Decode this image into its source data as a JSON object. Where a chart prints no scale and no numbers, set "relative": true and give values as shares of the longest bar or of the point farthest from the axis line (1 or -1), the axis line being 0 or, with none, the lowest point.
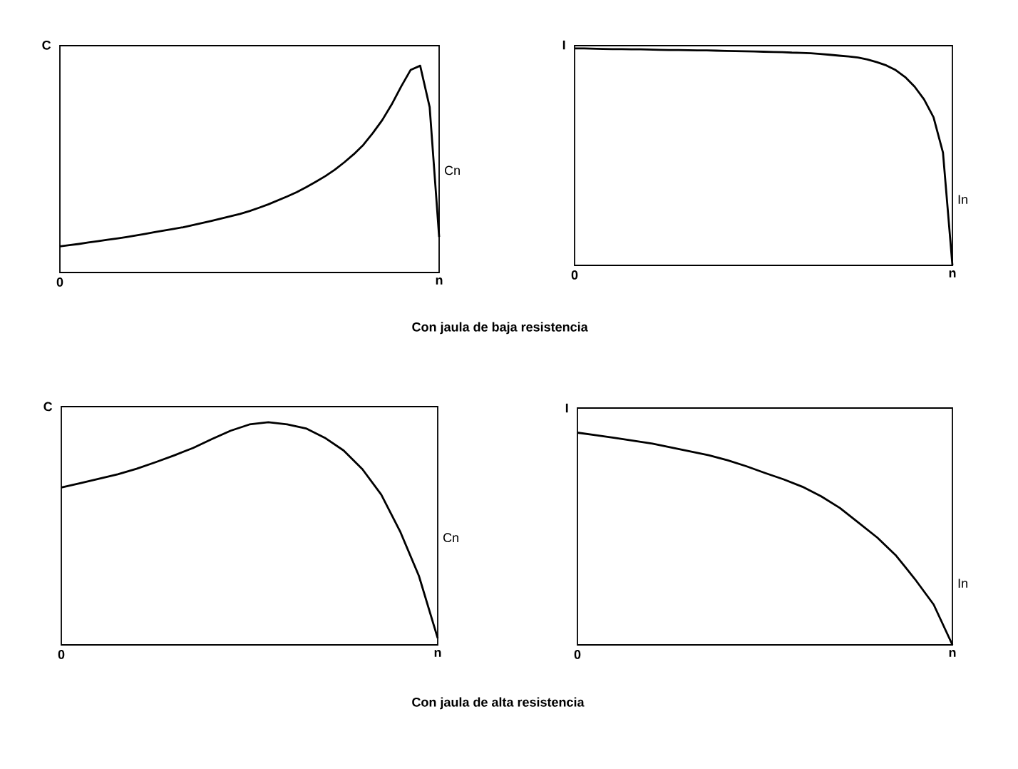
{
  "chart_data": [
    {
      "type": "line",
      "relative": true,
      "color": "#000000",
      "ylabel": "C",
      "annotations": [
        "Cn",
        "Con jaula de baja resistencia"
      ],
      "categories": [
        "0",
        null,
        null,
        null,
        null,
        null,
        null,
        null,
        null,
        null,
        null,
        null,
        null,
        null,
        null,
        null,
        null,
        null,
        null,
        null,
        null,
        null,
        null,
        null,
        null,
        null,
        null,
        null,
        null,
        null,
        null,
        null,
        null,
        null,
        null,
        null,
        null,
        null,
        null,
        null,
        "n"
      ],
      "values": [
        0.126,
        0.132,
        0.138,
        0.145,
        0.151,
        0.158,
        0.164,
        0.171,
        0.179,
        0.187,
        0.195,
        0.203,
        0.211,
        0.219,
        0.229,
        0.239,
        0.25,
        0.261,
        0.272,
        0.283,
        0.297,
        0.313,
        0.33,
        0.349,
        0.368,
        0.389,
        0.413,
        0.439,
        0.466,
        0.497,
        0.533,
        0.572,
        0.617,
        0.674,
        0.737,
        0.813,
        0.9,
        0.98,
        1.0,
        0.8,
        0.172
      ]
    },
    {
      "type": "line",
      "relative": true,
      "color": "#000000",
      "ylabel": "I",
      "annotations": [
        "In"
      ],
      "categories": [
        "0",
        null,
        null,
        null,
        null,
        null,
        null,
        null,
        null,
        null,
        null,
        null,
        null,
        null,
        null,
        null,
        null,
        null,
        null,
        null,
        null,
        null,
        null,
        null,
        null,
        null,
        null,
        null,
        null,
        null,
        null,
        null,
        null,
        null,
        null,
        null,
        null,
        null,
        null,
        null,
        "n"
      ],
      "values": [
        1.0,
        1.0,
        0.999,
        0.998,
        0.997,
        0.997,
        0.996,
        0.996,
        0.995,
        0.994,
        0.993,
        0.993,
        0.992,
        0.991,
        0.991,
        0.99,
        0.989,
        0.988,
        0.987,
        0.986,
        0.985,
        0.984,
        0.983,
        0.981,
        0.98,
        0.978,
        0.975,
        0.971,
        0.967,
        0.963,
        0.958,
        0.949,
        0.937,
        0.922,
        0.9,
        0.868,
        0.824,
        0.765,
        0.683,
        0.52,
        0.0
      ]
    },
    {
      "type": "line",
      "relative": true,
      "color": "#000000",
      "ylabel": "C",
      "annotations": [
        "Cn",
        "Con jaula de alta resistencia"
      ],
      "categories": [
        "0",
        null,
        null,
        null,
        null,
        null,
        null,
        null,
        null,
        null,
        null,
        null,
        null,
        null,
        null,
        null,
        null,
        null,
        null,
        null,
        "n"
      ],
      "values": [
        0.707,
        0.726,
        0.746,
        0.766,
        0.791,
        0.82,
        0.851,
        0.884,
        0.924,
        0.962,
        0.99,
        1.0,
        0.99,
        0.972,
        0.93,
        0.873,
        0.789,
        0.675,
        0.51,
        0.31,
        0.03
      ]
    },
    {
      "type": "line",
      "relative": true,
      "color": "#000000",
      "ylabel": "I",
      "annotations": [
        "In"
      ],
      "categories": [
        "0",
        null,
        null,
        null,
        null,
        null,
        null,
        null,
        null,
        null,
        null,
        null,
        null,
        null,
        null,
        null,
        null,
        null,
        null,
        null,
        "n"
      ],
      "values": [
        1.0,
        0.988,
        0.975,
        0.962,
        0.948,
        0.93,
        0.912,
        0.894,
        0.87,
        0.842,
        0.81,
        0.78,
        0.745,
        0.7,
        0.645,
        0.575,
        0.505,
        0.42,
        0.31,
        0.19,
        0.0
      ]
    }
  ]
}
